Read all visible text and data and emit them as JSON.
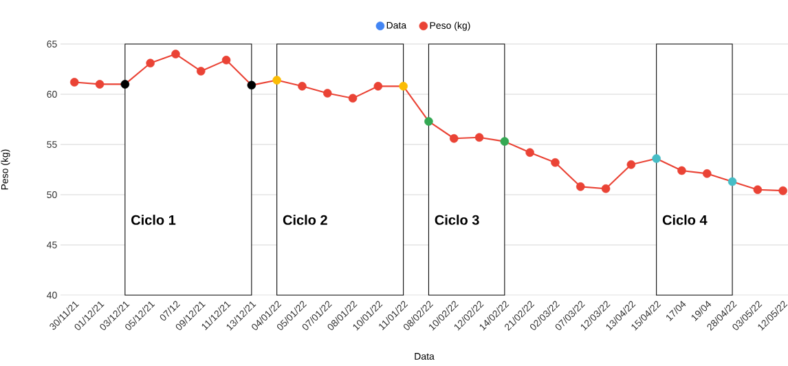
{
  "chart_data": {
    "type": "line",
    "xlabel": "Data",
    "ylabel": "Peso (kg)",
    "categories": [
      "30/11/21",
      "01/12/21",
      "03/12/21",
      "05/12/21",
      "07/12",
      "09/12/21",
      "11/12/21",
      "13/12/21",
      "04/01/22",
      "05/01/22",
      "07/01/22",
      "08/01/22",
      "10/01/22",
      "11/01/22",
      "08/02/22",
      "10/02/22",
      "12/02/22",
      "14/02/22",
      "21/02/22",
      "02/03/22",
      "07/03/22",
      "12/03/22",
      "13/04/22",
      "15/04/22",
      "17/04",
      "19/04",
      "28/04/22",
      "03/05/22",
      "12/05/22"
    ],
    "series": [
      {
        "name": "Data",
        "color": "#4285f4",
        "values": [
          null,
          null,
          null,
          null,
          null,
          null,
          null,
          null,
          null,
          null,
          null,
          null,
          null,
          null,
          null,
          null,
          null,
          null,
          null,
          null,
          null,
          null,
          null,
          null,
          null,
          null,
          null,
          null,
          null
        ]
      },
      {
        "name": "Peso (kg)",
        "color": "#ea4335",
        "values": [
          61.2,
          61.0,
          61.0,
          63.1,
          64.0,
          62.3,
          63.4,
          60.9,
          61.4,
          60.8,
          60.1,
          59.6,
          60.8,
          60.8,
          57.3,
          55.6,
          55.7,
          55.3,
          54.2,
          53.2,
          50.8,
          50.6,
          53.0,
          53.6,
          52.4,
          52.1,
          51.3,
          50.5,
          50.4
        ],
        "colors": [
          "#ea4335",
          "#ea4335",
          "#000000",
          "#ea4335",
          "#ea4335",
          "#ea4335",
          "#ea4335",
          "#000000",
          "#fbbc04",
          "#ea4335",
          "#ea4335",
          "#ea4335",
          "#ea4335",
          "#fbbc04",
          "#34a853",
          "#ea4335",
          "#ea4335",
          "#34a853",
          "#ea4335",
          "#ea4335",
          "#ea4335",
          "#ea4335",
          "#ea4335",
          "#46bdc6",
          "#ea4335",
          "#ea4335",
          "#46bdc6",
          "#ea4335",
          "#ea4335"
        ]
      }
    ],
    "ylim": [
      40,
      65
    ],
    "yticks": [
      40,
      45,
      50,
      55,
      60,
      65
    ],
    "grid": "y",
    "legend": "top",
    "marker": "circle",
    "line_style": "solid",
    "bands": [
      {
        "axis": "x",
        "from": "03/12/21",
        "to": "13/12/21",
        "label": "Ciclo 1",
        "color": "#000000"
      },
      {
        "axis": "x",
        "from": "04/01/22",
        "to": "11/01/22",
        "label": "Ciclo 2",
        "color": "#000000"
      },
      {
        "axis": "x",
        "from": "08/02/22",
        "to": "14/02/22",
        "label": "Ciclo 3",
        "color": "#000000"
      },
      {
        "axis": "x",
        "from": "15/04/22",
        "to": "28/04/22",
        "label": "Ciclo 4",
        "color": "#000000"
      }
    ]
  }
}
